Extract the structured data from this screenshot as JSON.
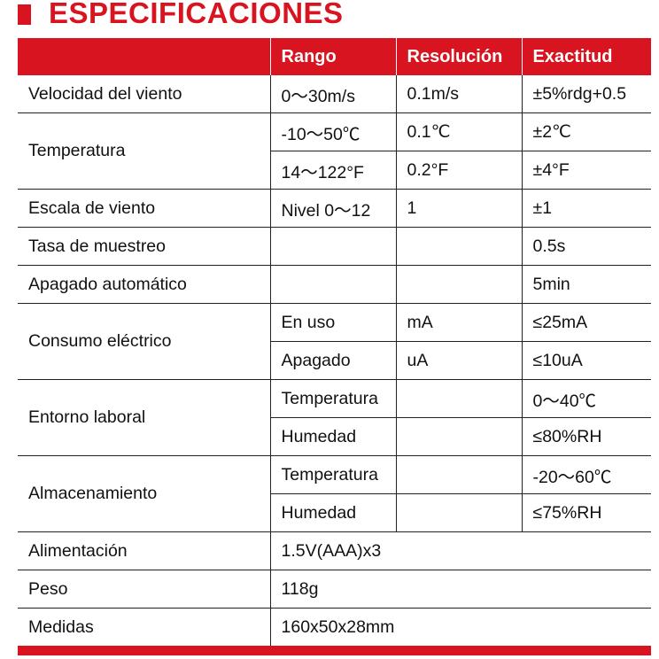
{
  "title": "ESPECIFICACIONES",
  "accent_color": "#d7141f",
  "headers": [
    "",
    "Rango",
    "Resolución",
    "Exactitud"
  ],
  "groups": [
    {
      "label": "Velocidad del viento",
      "rows": [
        [
          "0～30m/s",
          "0.1m/s",
          "±5%rdg+0.5"
        ]
      ]
    },
    {
      "label": "Temperatura",
      "rows": [
        [
          "-10～50℃",
          "0.1℃",
          "±2℃"
        ],
        [
          "14～122°F",
          "0.2°F",
          "±4°F"
        ]
      ]
    },
    {
      "label": "Escala de viento",
      "rows": [
        [
          "Nivel 0～12",
          "1",
          "±1"
        ]
      ]
    },
    {
      "label": "Tasa de muestreo",
      "rows": [
        [
          "",
          "",
          "0.5s"
        ]
      ]
    },
    {
      "label": "Apagado automático",
      "rows": [
        [
          "",
          "",
          "5min"
        ]
      ]
    },
    {
      "label": "Consumo eléctrico",
      "rows": [
        [
          "En uso",
          "mA",
          "≤25mA"
        ],
        [
          "Apagado",
          "uA",
          "≤10uA"
        ]
      ]
    },
    {
      "label": "Entorno laboral",
      "rows": [
        [
          "Temperatura",
          "",
          "0～40℃"
        ],
        [
          "Humedad",
          "",
          "≤80%RH"
        ]
      ]
    },
    {
      "label": "Almacenamiento",
      "rows": [
        [
          "Temperatura",
          "",
          "-20～60℃"
        ],
        [
          "Humedad",
          "",
          "≤75%RH"
        ]
      ]
    },
    {
      "label": "Alimentación",
      "value": "1.5V(AAA)x3"
    },
    {
      "label": "Peso",
      "value": "118g"
    },
    {
      "label": "Medidas",
      "value": "160x50x28mm"
    }
  ]
}
